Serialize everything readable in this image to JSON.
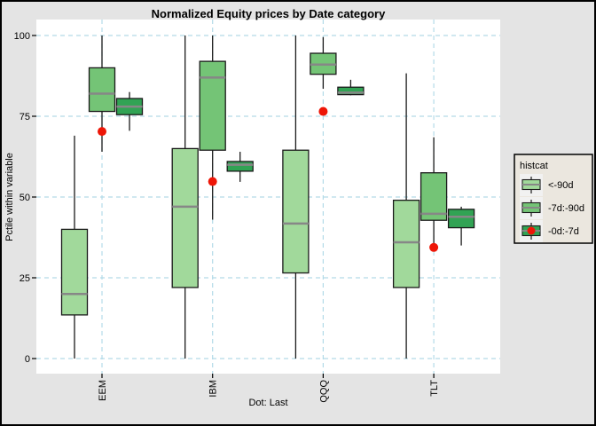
{
  "style": {
    "figure_bg": "#e4e4e4",
    "panel_bg": "#ffffff",
    "grid_color": "#b3dbe8",
    "box_border": "#1a1a1a",
    "median_color": "#878787",
    "whisker_color": "#1a1a1a",
    "axis_text_color": "#000000",
    "tick_color": "#000000",
    "legend_bg": "#ebe7df",
    "legend_key_bg": "#f1f1f1",
    "legend_border": "#000000"
  },
  "chart_data": {
    "type": "boxplot",
    "title": "Normalized Equity prices by Date category",
    "xlabel": "Dot: Last",
    "ylabel": "Pctile within variable",
    "ylim": [
      0,
      100
    ],
    "yticks": [
      0,
      25,
      50,
      75,
      100
    ],
    "categories": [
      "EEM",
      "IBM",
      "QQQ",
      "TLT"
    ],
    "grid": "dashed-lightblue-major",
    "x_tick_rotation": -90,
    "legend": {
      "title": "histcat",
      "position": "right",
      "entries": [
        {
          "label": "<-90d",
          "color": "#a1d99b",
          "dot": false
        },
        {
          "label": "-7d:-90d",
          "color": "#74c476",
          "dot": false
        },
        {
          "label": "-0d:-7d",
          "color": "#31a354",
          "dot": true
        }
      ]
    },
    "series": [
      {
        "name": "<-90d",
        "color": "#a1d99b",
        "boxes": [
          {
            "category": "EEM",
            "low": 0,
            "q1": 13.5,
            "median": 20,
            "q3": 40,
            "high": 69
          },
          {
            "category": "IBM",
            "low": 0,
            "q1": 22,
            "median": 47,
            "q3": 65,
            "high": 100
          },
          {
            "category": "QQQ",
            "low": 0,
            "q1": 26.5,
            "median": 41.8,
            "q3": 64.5,
            "high": 100
          },
          {
            "category": "TLT",
            "low": 0,
            "q1": 22,
            "median": 36,
            "q3": 49,
            "high": 88.3
          }
        ]
      },
      {
        "name": "-7d:-90d",
        "color": "#74c476",
        "boxes": [
          {
            "category": "EEM",
            "low": 64,
            "q1": 76.5,
            "median": 82,
            "q3": 90,
            "high": 100
          },
          {
            "category": "IBM",
            "low": 43,
            "q1": 64.5,
            "median": 87,
            "q3": 92,
            "high": 100
          },
          {
            "category": "QQQ",
            "low": 83.5,
            "q1": 88,
            "median": 91,
            "q3": 94.5,
            "high": 99.5
          },
          {
            "category": "TLT",
            "low": 34.5,
            "q1": 42.8,
            "median": 44.8,
            "q3": 57.5,
            "high": 68.5
          }
        ]
      },
      {
        "name": "-0d:-7d",
        "color": "#31a354",
        "boxes": [
          {
            "category": "EEM",
            "low": 70.5,
            "q1": 75.5,
            "median": 78,
            "q3": 80.5,
            "high": 82.5
          },
          {
            "category": "IBM",
            "low": 54.7,
            "q1": 58,
            "median": 60,
            "q3": 61,
            "high": 64
          },
          {
            "category": "QQQ",
            "low": 81.5,
            "q1": 81.7,
            "median": 82.3,
            "q3": 84,
            "high": 86.3
          },
          {
            "category": "TLT",
            "low": 35,
            "q1": 40.5,
            "median": 43.9,
            "q3": 46.2,
            "high": 47
          }
        ]
      }
    ],
    "dots": {
      "name": "-0d:-7d",
      "color": "#ee1607",
      "values": [
        {
          "category": "EEM",
          "value": 70.3
        },
        {
          "category": "IBM",
          "value": 54.8
        },
        {
          "category": "QQQ",
          "value": 76.5
        },
        {
          "category": "TLT",
          "value": 34.4
        }
      ]
    }
  }
}
